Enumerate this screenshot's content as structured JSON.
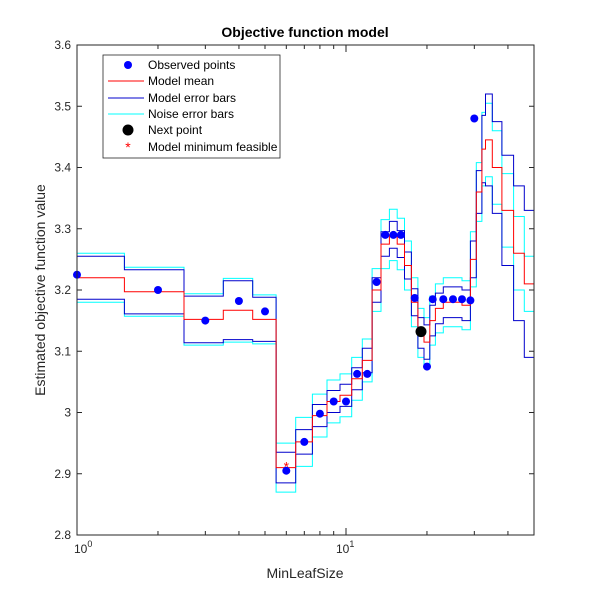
{
  "chart_data": {
    "type": "line",
    "title": "Objective function model",
    "xlabel": "MinLeafSize",
    "ylabel": "Estimated objective function value",
    "x_scale": "log",
    "xlim": [
      1,
      50
    ],
    "ylim": [
      2.8,
      3.6
    ],
    "yticks": [
      "2.8",
      "2.9",
      "3",
      "3.1",
      "3.2",
      "3.3",
      "3.4",
      "3.5",
      "3.6"
    ],
    "xticks": [
      {
        "base": "10",
        "exp": "0"
      },
      {
        "base": "10",
        "exp": "1"
      }
    ],
    "legend_position": "top-left",
    "legend": [
      "Observed points",
      "Model mean",
      "Model error bars",
      "Noise error bars",
      "Next point",
      "Model minimum feasible"
    ],
    "colors": {
      "observed": "#0000ff",
      "mean": "#ff0000",
      "model_err": "#0000cc",
      "noise_err": "#00ffff",
      "next": "#000000",
      "minimum": "#ff0000"
    },
    "observed_points": [
      {
        "x": 1,
        "y": 3.225
      },
      {
        "x": 2,
        "y": 3.2
      },
      {
        "x": 3,
        "y": 3.15
      },
      {
        "x": 4,
        "y": 3.182
      },
      {
        "x": 5,
        "y": 3.165
      },
      {
        "x": 6,
        "y": 2.905
      },
      {
        "x": 7,
        "y": 2.952
      },
      {
        "x": 8,
        "y": 2.998
      },
      {
        "x": 9,
        "y": 3.018
      },
      {
        "x": 10,
        "y": 3.018
      },
      {
        "x": 11,
        "y": 3.063
      },
      {
        "x": 12,
        "y": 3.063
      },
      {
        "x": 13,
        "y": 3.213
      },
      {
        "x": 14,
        "y": 3.29
      },
      {
        "x": 15,
        "y": 3.29
      },
      {
        "x": 16,
        "y": 3.29
      },
      {
        "x": 18,
        "y": 3.187
      },
      {
        "x": 20,
        "y": 3.075
      },
      {
        "x": 21,
        "y": 3.185
      },
      {
        "x": 23,
        "y": 3.185
      },
      {
        "x": 25,
        "y": 3.185
      },
      {
        "x": 27,
        "y": 3.185
      },
      {
        "x": 29,
        "y": 3.183
      },
      {
        "x": 30,
        "y": 3.48
      }
    ],
    "next_point": {
      "x": 19,
      "y": 3.132
    },
    "model_minimum": {
      "x": 6,
      "y": 2.912
    },
    "model": [
      {
        "x": 1,
        "mean": 3.22,
        "model_err": 0.035,
        "noise_err": 0.04
      },
      {
        "x": 1.5,
        "mean": 3.197,
        "model_err": 0.036,
        "noise_err": 0.04
      },
      {
        "x": 2.5,
        "mean": 3.152,
        "model_err": 0.038,
        "noise_err": 0.042
      },
      {
        "x": 3.5,
        "mean": 3.167,
        "model_err": 0.048,
        "noise_err": 0.052
      },
      {
        "x": 4.5,
        "mean": 3.152,
        "model_err": 0.036,
        "noise_err": 0.04
      },
      {
        "x": 5.5,
        "mean": 2.91,
        "model_err": 0.025,
        "noise_err": 0.04
      },
      {
        "x": 6.5,
        "mean": 2.952,
        "model_err": 0.02,
        "noise_err": 0.04
      },
      {
        "x": 7.5,
        "mean": 2.995,
        "model_err": 0.018,
        "noise_err": 0.035
      },
      {
        "x": 8.5,
        "mean": 3.018,
        "model_err": 0.018,
        "noise_err": 0.035
      },
      {
        "x": 9.5,
        "mean": 3.028,
        "model_err": 0.018,
        "noise_err": 0.035
      },
      {
        "x": 10.5,
        "mean": 3.055,
        "model_err": 0.018,
        "noise_err": 0.035
      },
      {
        "x": 11.5,
        "mean": 3.085,
        "model_err": 0.02,
        "noise_err": 0.035
      },
      {
        "x": 12.5,
        "mean": 3.2,
        "model_err": 0.02,
        "noise_err": 0.035
      },
      {
        "x": 13.5,
        "mean": 3.275,
        "model_err": 0.02,
        "noise_err": 0.04
      },
      {
        "x": 14.5,
        "mean": 3.29,
        "model_err": 0.022,
        "noise_err": 0.042
      },
      {
        "x": 15.5,
        "mean": 3.275,
        "model_err": 0.022,
        "noise_err": 0.042
      },
      {
        "x": 16.5,
        "mean": 3.24,
        "model_err": 0.022,
        "noise_err": 0.04
      },
      {
        "x": 17.5,
        "mean": 3.18,
        "model_err": 0.022,
        "noise_err": 0.04
      },
      {
        "x": 18.5,
        "mean": 3.13,
        "model_err": 0.025,
        "noise_err": 0.04
      },
      {
        "x": 19.5,
        "mean": 3.115,
        "model_err": 0.028,
        "noise_err": 0.04
      },
      {
        "x": 20.5,
        "mean": 3.15,
        "model_err": 0.025,
        "noise_err": 0.04
      },
      {
        "x": 21.5,
        "mean": 3.17,
        "model_err": 0.025,
        "noise_err": 0.04
      },
      {
        "x": 23,
        "mean": 3.18,
        "model_err": 0.025,
        "noise_err": 0.04
      },
      {
        "x": 25,
        "mean": 3.18,
        "model_err": 0.025,
        "noise_err": 0.04
      },
      {
        "x": 27,
        "mean": 3.175,
        "model_err": 0.025,
        "noise_err": 0.04
      },
      {
        "x": 29,
        "mean": 3.25,
        "model_err": 0.03,
        "noise_err": 0.045
      },
      {
        "x": 30.5,
        "mean": 3.36,
        "model_err": 0.035,
        "noise_err": 0.048
      },
      {
        "x": 32,
        "mean": 3.43,
        "model_err": 0.055,
        "noise_err": 0.06
      },
      {
        "x": 33,
        "mean": 3.445,
        "model_err": 0.075,
        "noise_err": 0.06
      },
      {
        "x": 35,
        "mean": 3.4,
        "model_err": 0.075,
        "noise_err": 0.06
      },
      {
        "x": 38,
        "mean": 3.33,
        "model_err": 0.09,
        "noise_err": 0.06
      },
      {
        "x": 42,
        "mean": 3.26,
        "model_err": 0.11,
        "noise_err": 0.06
      },
      {
        "x": 46,
        "mean": 3.21,
        "model_err": 0.12,
        "noise_err": 0.045
      },
      {
        "x": 50,
        "mean": 3.178,
        "model_err": 0.127,
        "noise_err": 0.04
      }
    ]
  }
}
